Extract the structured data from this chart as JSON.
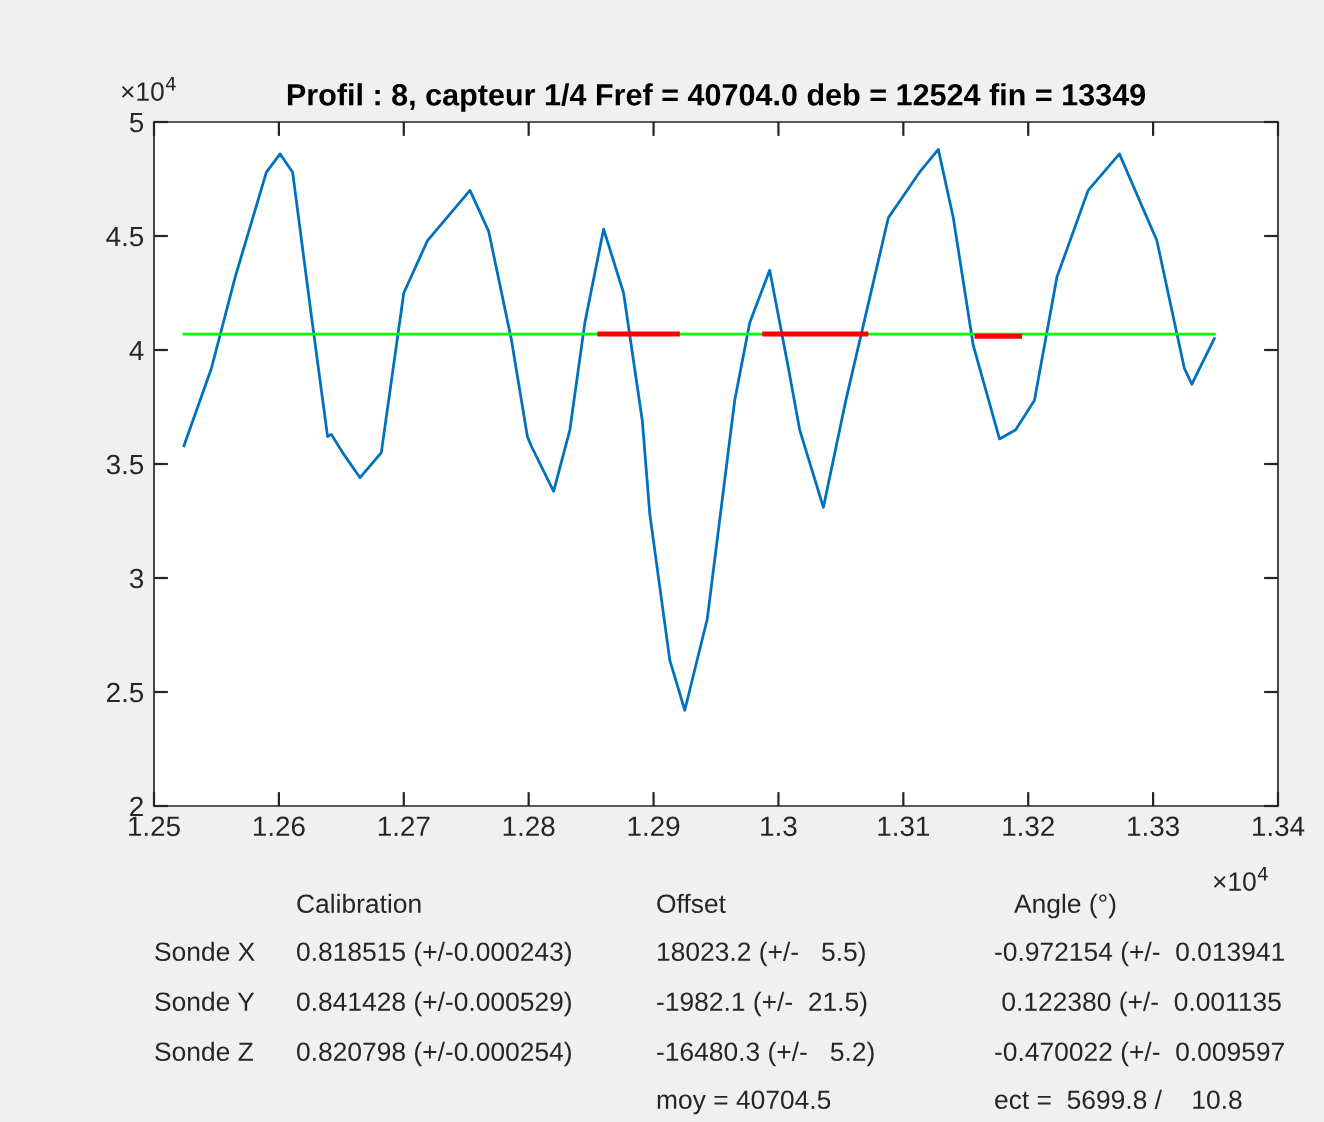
{
  "chart_data": {
    "type": "line",
    "title": "Profil : 8, capteur 1/4 Fref = 40704.0 deb = 12524 fin = 13349",
    "xlim": [
      1.25,
      1.34
    ],
    "ylim": [
      2,
      5
    ],
    "xticks": [
      1.25,
      1.26,
      1.27,
      1.28,
      1.29,
      1.3,
      1.31,
      1.32,
      1.33,
      1.34
    ],
    "yticks": [
      2,
      2.5,
      3,
      3.5,
      4,
      4.5,
      5
    ],
    "grid": false,
    "marker": "none",
    "line_style": "solid",
    "series": [
      {
        "color": "#0072bd",
        "x": [
          1.2524,
          1.2546,
          1.2565,
          1.259,
          1.2601,
          1.2611,
          1.2626,
          1.2639,
          1.2642,
          1.2651,
          1.2665,
          1.2682,
          1.27,
          1.2719,
          1.2753,
          1.2768,
          1.2786,
          1.2799,
          1.2802,
          1.282,
          1.2833,
          1.2845,
          1.286,
          1.2876,
          1.2891,
          1.2897,
          1.2913,
          1.2925,
          1.2943,
          1.2965,
          1.2977,
          1.2993,
          1.3008,
          1.3017,
          1.3036,
          1.3054,
          1.3088,
          1.3113,
          1.3128,
          1.314,
          1.3156,
          1.3177,
          1.319,
          1.3205,
          1.3223,
          1.3248,
          1.3273,
          1.3303,
          1.3325,
          1.3331,
          1.3349
        ],
        "values": [
          3.58,
          3.92,
          4.32,
          4.78,
          4.86,
          4.78,
          4.15,
          3.62,
          3.63,
          3.55,
          3.44,
          3.55,
          4.25,
          4.48,
          4.7,
          4.52,
          4.05,
          3.62,
          3.58,
          3.38,
          3.65,
          4.12,
          4.53,
          4.25,
          3.69,
          3.28,
          2.64,
          2.42,
          2.82,
          3.78,
          4.12,
          4.35,
          3.92,
          3.65,
          3.31,
          3.78,
          4.58,
          4.78,
          4.88,
          4.58,
          4.02,
          3.61,
          3.65,
          3.78,
          4.32,
          4.7,
          4.86,
          4.48,
          3.92,
          3.85,
          4.05
        ]
      },
      {
        "color": "#00ff00",
        "x": [
          1.2524,
          1.3349
        ],
        "values": [
          4.07,
          4.07
        ]
      },
      {
        "color": "#ff0000",
        "x": [
          1.2857,
          1.2919,
          1.292,
          1.2989,
          1.307,
          1.3071,
          1.3159,
          1.3193
        ],
        "values": [
          4.07,
          4.07,
          null,
          4.07,
          4.07,
          null,
          4.06,
          4.06
        ]
      }
    ],
    "annotations": [
      "×10$^{4}$",
      "×10$^{4}$",
      "Calibration",
      "Offset",
      "Angle (°)",
      "Sonde X",
      "0.818515 (+/-0.000243)",
      "18023.2 (+/-   5.5)",
      "-0.972154 (+/-  0.013941",
      "Sonde Y",
      "0.841428 (+/-0.000529)",
      "-1982.1 (+/-  21.5)",
      " 0.122380 (+/-  0.001135",
      "Sonde Z",
      "0.820798 (+/-0.000254)",
      "-16480.3 (+/-   5.2)",
      "-0.470022 (+/-  0.009597",
      "moy = 40704.5",
      "ect =  5699.8 /    10.8"
    ]
  }
}
